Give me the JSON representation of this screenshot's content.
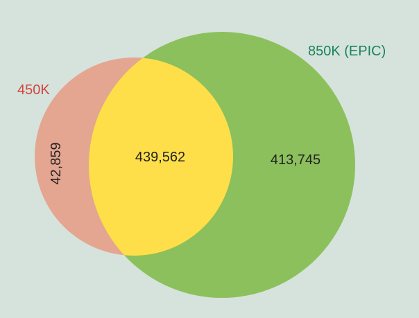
{
  "venn": {
    "background_color": "#d6e3dc",
    "sets": {
      "set_450k": {
        "label": "450K",
        "color": "#e4a690",
        "label_color": "#d2453f"
      },
      "set_850k": {
        "label": "850K (EPIC)",
        "color": "#8cc05c",
        "label_color": "#17845a"
      }
    },
    "intersection": {
      "color": "#fedf4a"
    },
    "counts": {
      "only_450k": "42,859",
      "both": "439,562",
      "only_850k": "413,745"
    }
  }
}
